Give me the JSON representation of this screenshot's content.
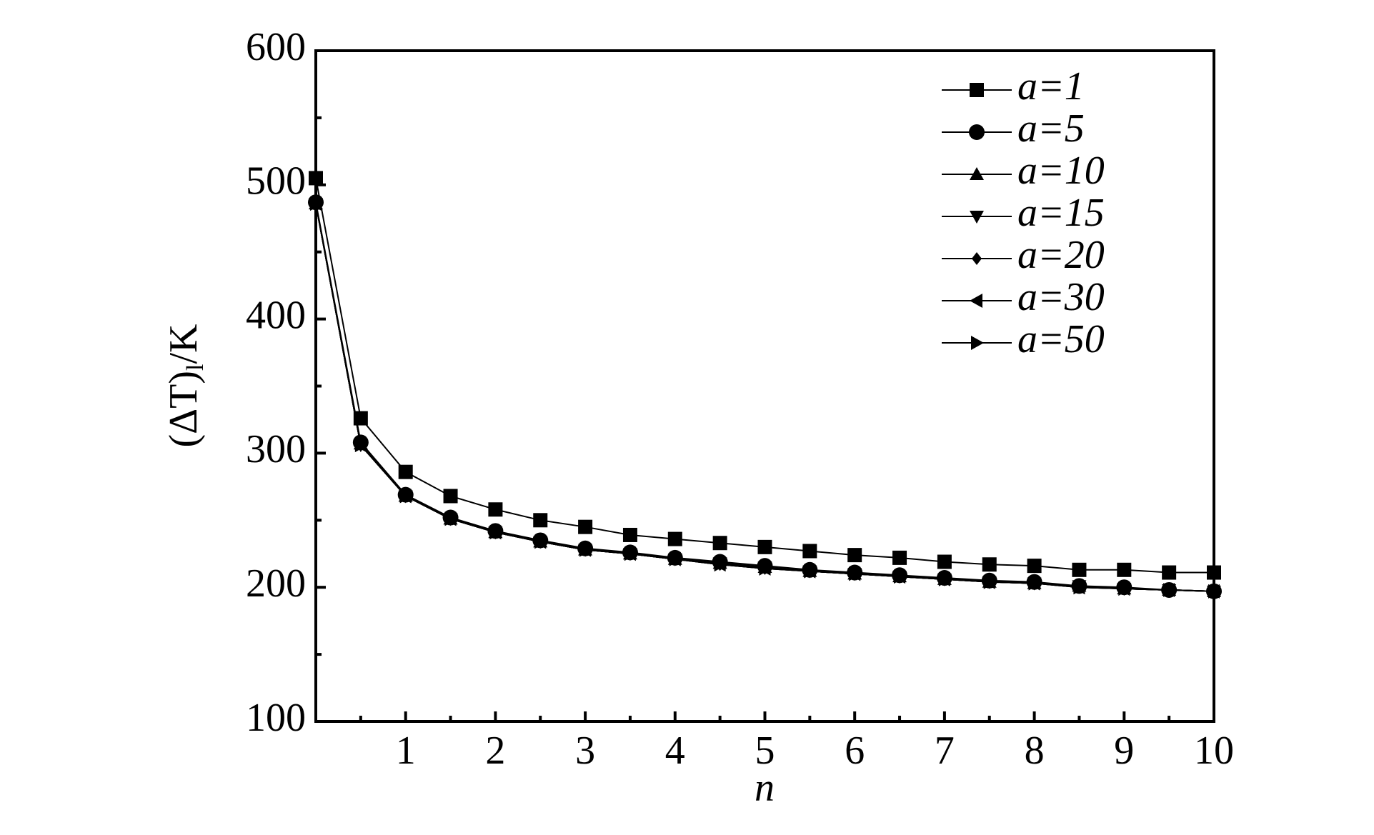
{
  "chart_data": {
    "type": "line",
    "xlabel": "n",
    "ylabel": "(ΔT)",
    "ylabel_sub": "l",
    "ylabel_unit": "/K",
    "x": [
      0,
      0.5,
      1,
      1.5,
      2,
      2.5,
      3,
      3.5,
      4,
      4.5,
      5,
      5.5,
      6,
      6.5,
      7,
      7.5,
      8,
      8.5,
      9,
      9.5,
      10
    ],
    "series": [
      {
        "name": "a=1",
        "marker": "square",
        "color": "#000000",
        "values": [
          505,
          326,
          286,
          268,
          258,
          250,
          245,
          239,
          236,
          233,
          230,
          227,
          224,
          222,
          219,
          217,
          216,
          213,
          213,
          211,
          211
        ]
      },
      {
        "name": "a=5",
        "marker": "circle",
        "color": "#000000",
        "values": [
          487,
          308,
          269,
          252,
          242,
          235,
          229,
          226,
          222,
          219,
          216,
          213,
          211,
          209,
          207,
          205,
          204,
          201,
          200,
          198,
          197
        ]
      },
      {
        "name": "a=10",
        "marker": "triangle-up",
        "color": "#000000",
        "values": [
          486,
          307,
          268,
          251,
          241,
          234,
          228,
          225,
          221,
          218,
          215,
          212,
          210,
          208,
          206,
          204,
          203,
          201,
          199,
          198,
          197
        ]
      },
      {
        "name": "a=15",
        "marker": "triangle-down",
        "color": "#000000",
        "values": [
          486,
          306,
          268,
          251,
          241,
          234,
          228,
          225,
          221,
          218,
          215,
          212,
          210,
          208,
          206,
          204,
          203,
          201,
          199,
          198,
          197
        ]
      },
      {
        "name": "a=20",
        "marker": "diamond",
        "color": "#000000",
        "values": [
          486,
          306,
          268,
          251,
          241,
          234,
          228,
          225,
          221,
          217,
          214,
          212,
          210,
          208,
          206,
          204,
          203,
          200,
          199,
          198,
          197
        ]
      },
      {
        "name": "a=30",
        "marker": "triangle-left",
        "color": "#000000",
        "values": [
          486,
          306,
          268,
          251,
          241,
          234,
          228,
          225,
          221,
          217,
          214,
          212,
          210,
          208,
          206,
          204,
          203,
          200,
          199,
          198,
          197
        ]
      },
      {
        "name": "a=50",
        "marker": "triangle-right",
        "color": "#000000",
        "values": [
          486,
          306,
          268,
          251,
          241,
          234,
          228,
          225,
          221,
          217,
          214,
          212,
          210,
          208,
          206,
          204,
          203,
          200,
          199,
          198,
          197
        ]
      }
    ],
    "xlim": [
      0,
      10
    ],
    "ylim": [
      100,
      600
    ],
    "xticks": [
      1,
      2,
      3,
      4,
      5,
      6,
      7,
      8,
      9,
      10
    ],
    "xminorticks": [
      0.5,
      1.5,
      2.5,
      3.5,
      4.5,
      5.5,
      6.5,
      7.5,
      8.5,
      9.5
    ],
    "yticks": [
      100,
      200,
      300,
      400,
      500,
      600
    ],
    "yminorticks": [
      150,
      250,
      350,
      450,
      550
    ],
    "grid": false,
    "legend": "upper right"
  }
}
